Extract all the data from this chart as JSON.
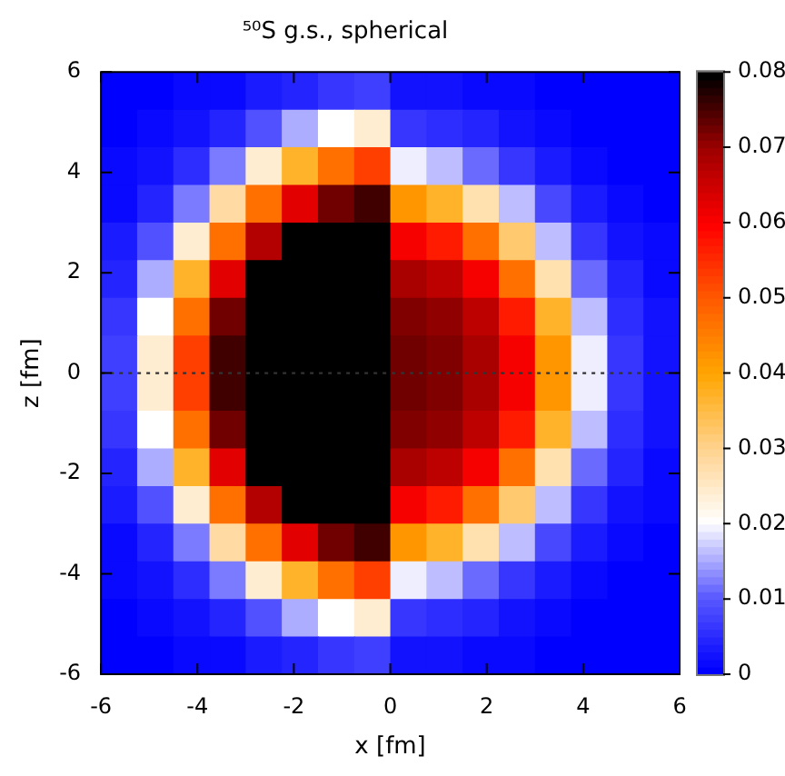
{
  "chart_data": {
    "type": "heatmap",
    "title": "⁵⁰S g.s., spherical",
    "xlabel": "x [fm]",
    "ylabel": "z [fm]",
    "xlim": [
      -6,
      6
    ],
    "ylim": [
      -6,
      6
    ],
    "xticks": [
      -6,
      -4,
      -2,
      0,
      2,
      4,
      6
    ],
    "yticks": [
      -6,
      -4,
      -2,
      0,
      2,
      4,
      6
    ],
    "clim": [
      0,
      0.08
    ],
    "cticks": [
      0,
      0.01,
      0.02,
      0.03,
      0.04,
      0.05,
      0.06,
      0.07,
      0.08
    ],
    "ref_lines": [
      {
        "axis": "y",
        "value": 0,
        "color": "#333333",
        "line_style": "dotted"
      }
    ],
    "cells": [
      [
        0.0,
        0.0,
        0.001,
        0.001,
        0.003,
        0.004,
        0.006,
        0.007,
        0.002,
        0.002,
        0.001,
        0.001,
        0.0,
        0.0,
        0.0,
        0.0
      ],
      [
        0.0,
        0.001,
        0.002,
        0.004,
        0.009,
        0.015,
        0.02,
        0.024,
        0.006,
        0.005,
        0.004,
        0.002,
        0.001,
        0.0,
        0.0,
        0.0
      ],
      [
        0.001,
        0.002,
        0.005,
        0.012,
        0.024,
        0.037,
        0.047,
        0.053,
        0.019,
        0.016,
        0.011,
        0.006,
        0.003,
        0.001,
        0.0,
        0.0
      ],
      [
        0.001,
        0.004,
        0.012,
        0.028,
        0.047,
        0.063,
        0.073,
        0.076,
        0.042,
        0.037,
        0.027,
        0.016,
        0.008,
        0.003,
        0.001,
        0.0
      ],
      [
        0.003,
        0.009,
        0.024,
        0.047,
        0.068,
        0.08,
        0.08,
        0.08,
        0.061,
        0.057,
        0.047,
        0.032,
        0.016,
        0.006,
        0.002,
        0.001
      ],
      [
        0.004,
        0.015,
        0.037,
        0.063,
        0.08,
        0.08,
        0.08,
        0.08,
        0.069,
        0.067,
        0.061,
        0.047,
        0.027,
        0.011,
        0.004,
        0.001
      ],
      [
        0.006,
        0.02,
        0.047,
        0.073,
        0.08,
        0.08,
        0.08,
        0.08,
        0.072,
        0.071,
        0.067,
        0.057,
        0.037,
        0.016,
        0.005,
        0.002
      ],
      [
        0.007,
        0.024,
        0.053,
        0.076,
        0.08,
        0.08,
        0.08,
        0.08,
        0.073,
        0.072,
        0.069,
        0.061,
        0.042,
        0.019,
        0.006,
        0.002
      ],
      [
        0.007,
        0.024,
        0.053,
        0.076,
        0.08,
        0.08,
        0.08,
        0.08,
        0.073,
        0.072,
        0.069,
        0.061,
        0.042,
        0.019,
        0.006,
        0.002
      ],
      [
        0.006,
        0.02,
        0.047,
        0.073,
        0.08,
        0.08,
        0.08,
        0.08,
        0.072,
        0.071,
        0.067,
        0.057,
        0.037,
        0.016,
        0.005,
        0.002
      ],
      [
        0.004,
        0.015,
        0.037,
        0.063,
        0.08,
        0.08,
        0.08,
        0.08,
        0.069,
        0.067,
        0.061,
        0.047,
        0.027,
        0.011,
        0.004,
        0.001
      ],
      [
        0.003,
        0.009,
        0.024,
        0.047,
        0.068,
        0.08,
        0.08,
        0.08,
        0.061,
        0.057,
        0.047,
        0.032,
        0.016,
        0.006,
        0.002,
        0.001
      ],
      [
        0.001,
        0.004,
        0.012,
        0.028,
        0.047,
        0.063,
        0.073,
        0.076,
        0.042,
        0.037,
        0.027,
        0.016,
        0.008,
        0.003,
        0.001,
        0.0
      ],
      [
        0.001,
        0.002,
        0.005,
        0.012,
        0.024,
        0.037,
        0.047,
        0.053,
        0.019,
        0.016,
        0.011,
        0.006,
        0.003,
        0.001,
        0.0,
        0.0
      ],
      [
        0.0,
        0.001,
        0.002,
        0.004,
        0.009,
        0.015,
        0.02,
        0.024,
        0.006,
        0.005,
        0.004,
        0.002,
        0.001,
        0.0,
        0.0,
        0.0
      ],
      [
        0.0,
        0.0,
        0.001,
        0.001,
        0.003,
        0.004,
        0.006,
        0.007,
        0.002,
        0.002,
        0.001,
        0.001,
        0.0,
        0.0,
        0.0,
        0.0
      ]
    ]
  }
}
